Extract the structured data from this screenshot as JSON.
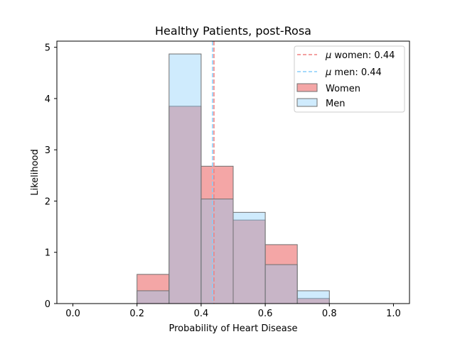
{
  "chart_data": {
    "type": "bar",
    "title": "Healthy Patients, post-Rosa",
    "xlabel": "Probability of Heart Disease",
    "ylabel": "Likelihood",
    "xlim": [
      -0.05,
      1.05
    ],
    "ylim": [
      0,
      5.12
    ],
    "xticks": [
      0.0,
      0.2,
      0.4,
      0.6,
      0.8,
      1.0
    ],
    "xtick_labels": [
      "0.0",
      "0.2",
      "0.4",
      "0.6",
      "0.8",
      "1.0"
    ],
    "yticks": [
      0,
      1,
      2,
      3,
      4,
      5
    ],
    "ytick_labels": [
      "0",
      "1",
      "2",
      "3",
      "4",
      "5"
    ],
    "bin_edges": [
      0.0,
      0.1,
      0.2,
      0.3,
      0.4,
      0.5,
      0.6,
      0.7,
      0.8,
      0.9,
      1.0
    ],
    "series": [
      {
        "name": "Women",
        "color": "#f08080",
        "values": [
          0,
          0,
          0.57,
          3.85,
          2.68,
          1.63,
          1.15,
          0.1,
          0,
          0
        ]
      },
      {
        "name": "Men",
        "color": "#87cefa",
        "values": [
          0,
          0,
          0.25,
          4.87,
          2.04,
          1.78,
          0.76,
          0.25,
          0,
          0
        ]
      }
    ],
    "mean_lines": [
      {
        "name": "women",
        "value": 0.44,
        "color": "#f08080",
        "label_prefix": "μ",
        "label_text": " women: 0.44"
      },
      {
        "name": "men",
        "value": 0.44,
        "color": "#87cefa",
        "label_prefix": "μ",
        "label_text": " men: 0.44"
      }
    ],
    "legend_position": "top-right",
    "grid": false
  }
}
